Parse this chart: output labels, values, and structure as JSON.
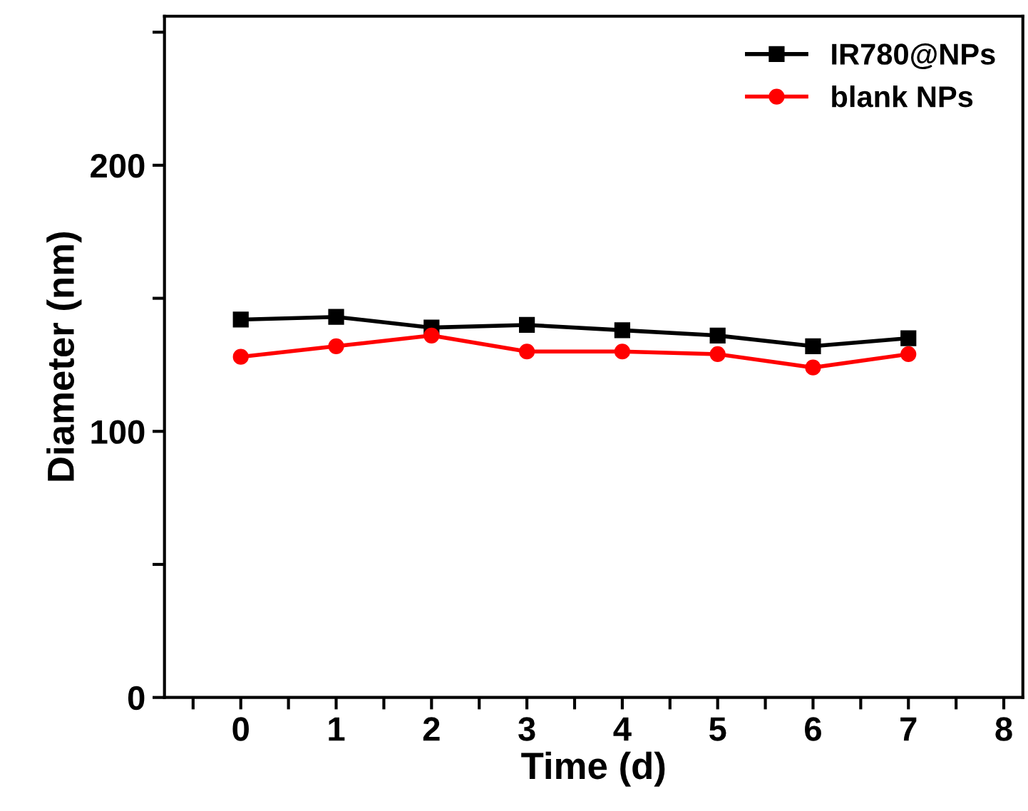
{
  "chart_data": {
    "type": "line",
    "xlabel": "Time (d)",
    "ylabel": "Diameter (nm)",
    "x": [
      0,
      1,
      2,
      3,
      4,
      5,
      6,
      7
    ],
    "series": [
      {
        "name": "IR780@NPs",
        "color": "#000000",
        "marker": "square",
        "values": [
          142,
          143,
          139,
          140,
          138,
          136,
          132,
          135
        ]
      },
      {
        "name": "blank NPs",
        "color": "#ff0000",
        "marker": "circle",
        "values": [
          128,
          132,
          136,
          130,
          130,
          129,
          124,
          129
        ]
      }
    ],
    "xlim": [
      -0.8,
      8.2
    ],
    "ylim": [
      0,
      256
    ],
    "xticks": [
      {
        "value": -0.5,
        "label": null
      },
      0,
      {
        "value": 0.5,
        "label": null
      },
      1,
      {
        "value": 1.5,
        "label": null
      },
      2,
      {
        "value": 2.5,
        "label": null
      },
      3,
      {
        "value": 3.5,
        "label": null
      },
      4,
      {
        "value": 4.5,
        "label": null
      },
      5,
      {
        "value": 5.5,
        "label": null
      },
      6,
      {
        "value": 6.5,
        "label": null
      },
      7,
      {
        "value": 7.5,
        "label": null
      },
      8
    ],
    "yticks": [
      0,
      {
        "value": 50,
        "label": null
      },
      100,
      {
        "value": 150,
        "label": null
      },
      200,
      {
        "value": 250,
        "label": null
      }
    ],
    "grid": false,
    "legend": "top right",
    "line_style": "solid"
  }
}
